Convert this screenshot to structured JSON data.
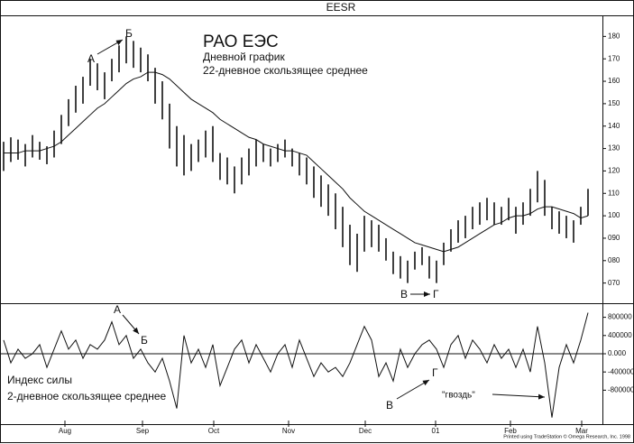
{
  "chart_data": [
    {
      "type": "hilo",
      "title": "EESR",
      "color": "#111",
      "xlim": [
        -0.5,
        83
      ],
      "ylim": [
        61,
        189
      ],
      "yticks": [
        180,
        170,
        160,
        150,
        140,
        130,
        120,
        110,
        100,
        {
          "value": 90,
          "label": "090"
        },
        {
          "value": 80,
          "label": "080"
        },
        {
          "value": 70,
          "label": "070"
        }
      ],
      "high": [
        133,
        135,
        134,
        132,
        136,
        133,
        131,
        138,
        145,
        152,
        158,
        162,
        170,
        168,
        164,
        170,
        176,
        180,
        178,
        175,
        172,
        166,
        160,
        150,
        140,
        136,
        132,
        134,
        138,
        140,
        128,
        126,
        122,
        126,
        130,
        134,
        132,
        130,
        132,
        134,
        130,
        128,
        126,
        122,
        118,
        114,
        110,
        104,
        96,
        92,
        100,
        98,
        96,
        90,
        84,
        82,
        80,
        84,
        86,
        82,
        80,
        88,
        94,
        98,
        100,
        104,
        106,
        108,
        106,
        104,
        108,
        104,
        106,
        112,
        120,
        116,
        104,
        102,
        100,
        98,
        104,
        112
      ],
      "low": [
        120,
        124,
        125,
        122,
        126,
        125,
        123,
        126,
        132,
        140,
        146,
        150,
        158,
        156,
        152,
        160,
        164,
        168,
        166,
        164,
        160,
        150,
        143,
        130,
        122,
        118,
        120,
        124,
        126,
        124,
        116,
        114,
        110,
        114,
        118,
        122,
        124,
        122,
        124,
        126,
        122,
        118,
        114,
        108,
        104,
        100,
        94,
        86,
        78,
        75,
        84,
        86,
        84,
        80,
        74,
        72,
        70,
        76,
        78,
        72,
        70,
        78,
        84,
        88,
        90,
        94,
        96,
        98,
        96,
        96,
        98,
        92,
        96,
        100,
        106,
        100,
        94,
        92,
        90,
        88,
        96,
        100
      ],
      "ma": [
        128,
        128,
        128,
        129,
        129,
        129,
        130,
        131,
        133,
        136,
        139,
        142,
        145,
        148,
        150,
        153,
        156,
        159,
        161,
        162,
        164,
        164,
        163,
        161,
        158,
        155,
        152,
        150,
        148,
        146,
        143,
        141,
        139,
        137,
        135,
        134,
        132,
        131,
        130,
        129,
        129,
        128,
        127,
        124,
        121,
        118,
        115,
        112,
        108,
        105,
        102,
        100,
        98,
        96,
        94,
        92,
        90,
        88,
        87,
        86,
        85,
        84,
        85,
        86,
        88,
        90,
        92,
        94,
        96,
        97,
        99,
        100,
        100,
        101,
        103,
        104,
        104,
        103,
        102,
        101,
        99,
        100
      ],
      "annotations": [
        "РАО ЕЭС",
        "Дневной график",
        "22-дневное скользящее среднее",
        "А",
        "Б",
        "В",
        "Г"
      ]
    },
    {
      "type": "line",
      "color": "#111",
      "xlim": [
        -0.5,
        83
      ],
      "ylim": [
        -1545000,
        1089000
      ],
      "yticks": [
        800000,
        400000,
        {
          "value": 0,
          "label": "0.000"
        },
        -400000,
        -800000
      ],
      "xticks": [
        {
          "value": 8.5,
          "label": "Aug"
        },
        {
          "value": 19.25,
          "label": "Sep"
        },
        {
          "value": 29.125,
          "label": "Oct"
        },
        {
          "value": 39.5,
          "label": "Nov"
        },
        {
          "value": 50.125,
          "label": "Dec"
        },
        {
          "value": 59.875,
          "label": "01"
        },
        {
          "value": 70.25,
          "label": "Feb"
        },
        {
          "value": 80.125,
          "label": "Mar"
        }
      ],
      "values": [
        300000,
        -200000,
        100000,
        -100000,
        0,
        200000,
        -300000,
        100000,
        500000,
        100000,
        300000,
        -100000,
        200000,
        100000,
        300000,
        700000,
        200000,
        400000,
        -100000,
        100000,
        -200000,
        -400000,
        -100000,
        -600000,
        -1200000,
        400000,
        -200000,
        100000,
        -300000,
        200000,
        -700000,
        -300000,
        100000,
        300000,
        -200000,
        200000,
        -100000,
        -400000,
        0,
        200000,
        -300000,
        300000,
        -100000,
        -500000,
        -200000,
        -400000,
        -300000,
        -500000,
        -200000,
        200000,
        600000,
        300000,
        -500000,
        -200000,
        -600000,
        100000,
        -300000,
        0,
        200000,
        300000,
        100000,
        -300000,
        200000,
        400000,
        -100000,
        300000,
        100000,
        -200000,
        200000,
        -100000,
        100000,
        -300000,
        100000,
        -400000,
        600000,
        -200000,
        -1400000,
        -300000,
        200000,
        -200000,
        300000,
        900000
      ],
      "annotations": [
        "Индекс силы",
        "2-дневное скользящее среднее",
        "А",
        "Б",
        "В",
        "Г",
        "\"гвоздь\""
      ]
    }
  ],
  "footer": "Printed using TradeStation © Omega Research, Inc. 1998"
}
